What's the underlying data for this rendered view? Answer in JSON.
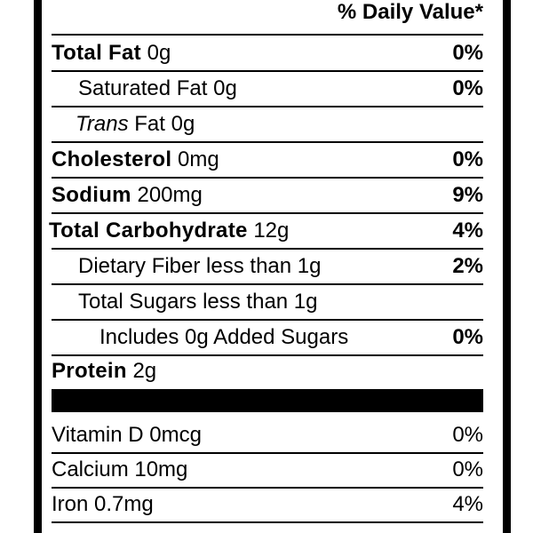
{
  "header": {
    "daily_value": "% Daily Value*"
  },
  "nutrients": [
    {
      "name": "Total Fat",
      "amount": "0g",
      "dv": "0%"
    },
    {
      "name": "Saturated Fat",
      "amount": "0g",
      "dv": "0%"
    },
    {
      "name": "Trans",
      "name_rest": "Fat",
      "amount": "0g"
    },
    {
      "name": "Cholesterol",
      "amount": "0mg",
      "dv": "0%"
    },
    {
      "name": "Sodium",
      "amount": "200mg",
      "dv": "9%"
    },
    {
      "name": "Total Carbohydrate",
      "amount": "12g",
      "dv": "4%"
    },
    {
      "name": "Dietary Fiber",
      "amount": "less than 1g",
      "dv": "2%"
    },
    {
      "name": "Total Sugars",
      "amount": "less than 1g"
    },
    {
      "name": "Includes 0g Added Sugars",
      "dv": "0%"
    },
    {
      "name": "Protein",
      "amount": "2g"
    }
  ],
  "vitamins": [
    {
      "name": "Vitamin D",
      "amount": "0mcg",
      "dv": "0%"
    },
    {
      "name": "Calcium",
      "amount": "10mg",
      "dv": "0%"
    },
    {
      "name": "Iron",
      "amount": "0.7mg",
      "dv": "4%"
    }
  ]
}
